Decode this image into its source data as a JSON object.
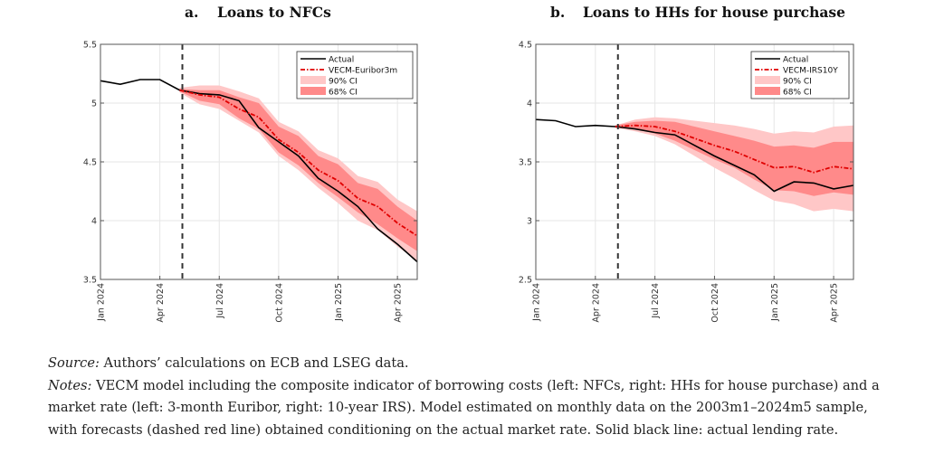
{
  "panels": [
    {
      "label": "a.",
      "title": "Loans to NFCs"
    },
    {
      "label": "b.",
      "title": "Loans to HHs for house purchase"
    }
  ],
  "notes": {
    "source_label": "Source:",
    "source_text": " Authors’ calculations on ECB and LSEG data.",
    "notes_label": "Notes:",
    "notes_line1": " VECM model including the composite indicator of borrowing costs (left: NFCs, right: HHs for house purchase) and a",
    "notes_line2": "market rate (left: 3-month Euribor, right: 10-year IRS). Model estimated on monthly data on the 2003m1–2024m5 sample,",
    "notes_line3": "with forecasts (dashed red line) obtained conditioning on the actual market rate. Solid black line: actual lending rate."
  },
  "colors": {
    "actual": "#000000",
    "forecast": "#e00000",
    "ci90": "#ffc7c7",
    "ci68": "#ff8a8a",
    "grid": "#e6e6e6",
    "axis": "#555555",
    "vline": "#333333"
  },
  "chart_data": [
    {
      "type": "line",
      "title": "Loans to NFCs",
      "xlabel": "",
      "ylabel": "",
      "ylim": [
        3.5,
        5.5
      ],
      "yticks": [
        "3.5",
        "4",
        "4.5",
        "5",
        "5.5"
      ],
      "ytick_values": [
        3.5,
        4,
        4.5,
        5,
        5.5
      ],
      "x": [
        "Jan 2024",
        "Feb 2024",
        "Mar 2024",
        "Apr 2024",
        "May 2024",
        "Jun 2024",
        "Jul 2024",
        "Aug 2024",
        "Sep 2024",
        "Oct 2024",
        "Nov 2024",
        "Dec 2024",
        "Jan 2025",
        "Feb 2025",
        "Mar 2025",
        "Apr 2025",
        "May 2025"
      ],
      "xticks": [
        "Jan 2024",
        "Apr 2024",
        "Jul 2024",
        "Oct 2024",
        "Jan 2025",
        "Apr 2025"
      ],
      "xtick_index": [
        0,
        3,
        6,
        9,
        12,
        15
      ],
      "forecast_start_index": 4,
      "grid": true,
      "legend_position": "top-right",
      "legend": [
        "Actual",
        "VECM-Euribor3m",
        "90% CI",
        "68% CI"
      ],
      "series": [
        {
          "name": "Actual",
          "values": [
            5.19,
            5.16,
            5.2,
            5.2,
            5.11,
            5.08,
            5.07,
            5.02,
            4.79,
            4.67,
            4.55,
            4.36,
            4.25,
            4.12,
            3.93,
            3.8,
            3.65
          ]
        },
        {
          "name": "VECM-Euribor3m",
          "values": [
            null,
            null,
            null,
            null,
            5.11,
            5.07,
            5.05,
            4.95,
            4.88,
            4.69,
            4.58,
            4.43,
            4.34,
            4.19,
            4.12,
            3.98,
            3.87
          ]
        }
      ],
      "bands": [
        {
          "name": "90% CI",
          "upper": [
            null,
            null,
            null,
            null,
            5.13,
            5.15,
            5.15,
            5.1,
            5.04,
            4.84,
            4.76,
            4.6,
            4.53,
            4.38,
            4.33,
            4.18,
            4.08
          ],
          "lower": [
            null,
            null,
            null,
            null,
            5.09,
            4.99,
            4.95,
            4.85,
            4.75,
            4.55,
            4.43,
            4.28,
            4.15,
            4.0,
            3.92,
            3.78,
            3.66
          ]
        },
        {
          "name": "68% CI",
          "upper": [
            null,
            null,
            null,
            null,
            5.12,
            5.11,
            5.11,
            5.05,
            5.0,
            4.8,
            4.72,
            4.55,
            4.48,
            4.32,
            4.27,
            4.12,
            4.0
          ],
          "lower": [
            null,
            null,
            null,
            null,
            5.1,
            5.02,
            4.99,
            4.87,
            4.78,
            4.58,
            4.47,
            4.32,
            4.2,
            4.07,
            3.97,
            3.85,
            3.74
          ]
        }
      ]
    },
    {
      "type": "line",
      "title": "Loans to HHs for house purchase",
      "xlabel": "",
      "ylabel": "",
      "ylim": [
        2.5,
        4.5
      ],
      "yticks": [
        "2.5",
        "3",
        "3.5",
        "4",
        "4.5"
      ],
      "ytick_values": [
        2.5,
        3,
        3.5,
        4,
        4.5
      ],
      "x": [
        "Jan 2024",
        "Feb 2024",
        "Mar 2024",
        "Apr 2024",
        "May 2024",
        "Jun 2024",
        "Jul 2024",
        "Aug 2024",
        "Sep 2024",
        "Oct 2024",
        "Nov 2024",
        "Dec 2024",
        "Jan 2025",
        "Feb 2025",
        "Mar 2025",
        "Apr 2025",
        "May 2025"
      ],
      "xticks": [
        "Jan 2024",
        "Apr 2024",
        "Jul 2024",
        "Oct 2024",
        "Jan 2025",
        "Apr 2025"
      ],
      "xtick_index": [
        0,
        3,
        6,
        9,
        12,
        15
      ],
      "forecast_start_index": 4,
      "grid": true,
      "legend_position": "top-right",
      "legend": [
        "Actual",
        "VECM-IRS10Y",
        "90% CI",
        "68% CI"
      ],
      "series": [
        {
          "name": "Actual",
          "values": [
            3.86,
            3.85,
            3.8,
            3.81,
            3.8,
            3.78,
            3.75,
            3.73,
            3.64,
            3.55,
            3.47,
            3.39,
            3.25,
            3.33,
            3.32,
            3.27,
            3.3
          ]
        },
        {
          "name": "VECM-IRS10Y",
          "values": [
            null,
            null,
            null,
            null,
            3.8,
            3.81,
            3.8,
            3.76,
            3.7,
            3.64,
            3.59,
            3.52,
            3.45,
            3.46,
            3.41,
            3.46,
            3.44
          ]
        }
      ],
      "bands": [
        {
          "name": "90% CI",
          "upper": [
            null,
            null,
            null,
            null,
            3.81,
            3.86,
            3.88,
            3.87,
            3.85,
            3.83,
            3.81,
            3.78,
            3.74,
            3.76,
            3.75,
            3.8,
            3.81
          ],
          "lower": [
            null,
            null,
            null,
            null,
            3.79,
            3.76,
            3.72,
            3.65,
            3.55,
            3.45,
            3.36,
            3.26,
            3.17,
            3.14,
            3.08,
            3.1,
            3.08
          ]
        },
        {
          "name": "68% CI",
          "upper": [
            null,
            null,
            null,
            null,
            3.81,
            3.84,
            3.85,
            3.84,
            3.8,
            3.76,
            3.72,
            3.68,
            3.63,
            3.64,
            3.62,
            3.67,
            3.67
          ],
          "lower": [
            null,
            null,
            null,
            null,
            3.79,
            3.78,
            3.74,
            3.68,
            3.6,
            3.52,
            3.45,
            3.35,
            3.26,
            3.25,
            3.21,
            3.24,
            3.22
          ]
        }
      ]
    }
  ]
}
